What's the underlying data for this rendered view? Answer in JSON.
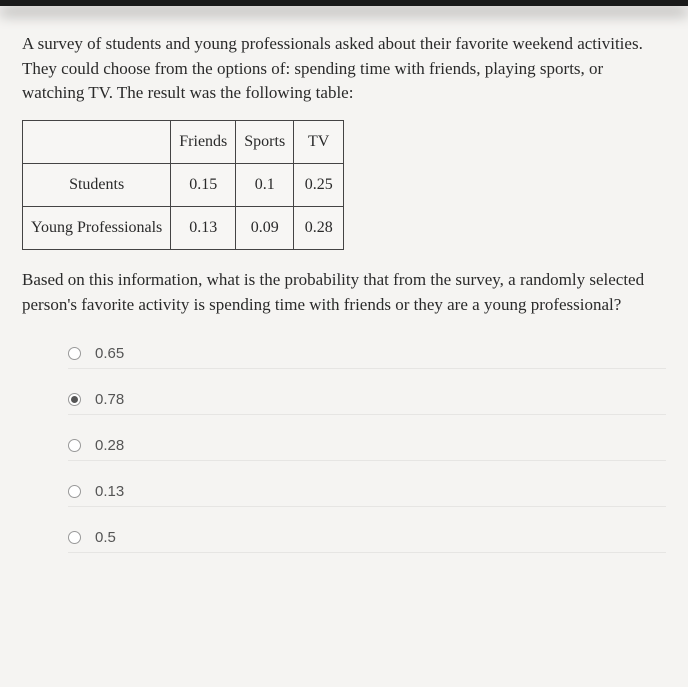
{
  "question": {
    "intro": "A survey of students and young professionals asked about their favorite weekend activities. They could choose from the options of: spending time with friends, playing sports, or watching TV. The result was the following table:",
    "followup": "Based on this information, what is the probability that from the survey, a randomly selected person's favorite activity is spending time with friends or they are a young professional?"
  },
  "table": {
    "columns": [
      "Friends",
      "Sports",
      "TV"
    ],
    "rows": [
      {
        "label": "Students",
        "values": [
          "0.15",
          "0.1",
          "0.25"
        ]
      },
      {
        "label": "Young Professionals",
        "values": [
          "0.13",
          "0.09",
          "0.28"
        ]
      }
    ]
  },
  "options": [
    {
      "label": "0.65",
      "selected": false
    },
    {
      "label": "0.78",
      "selected": true
    },
    {
      "label": "0.28",
      "selected": false
    },
    {
      "label": "0.13",
      "selected": false
    },
    {
      "label": "0.5",
      "selected": false
    }
  ]
}
